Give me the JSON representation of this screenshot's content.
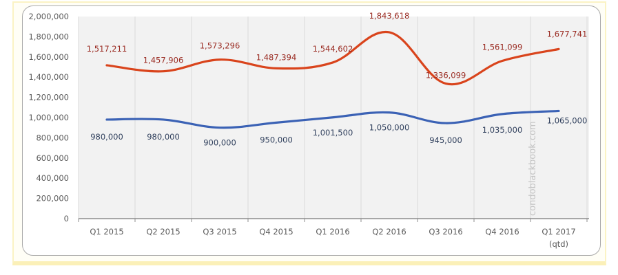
{
  "chart_data": {
    "type": "line",
    "title": "",
    "xlabel": "",
    "ylabel": "",
    "ylim": [
      0,
      2000000
    ],
    "yticks": [
      0,
      200000,
      400000,
      600000,
      800000,
      1000000,
      1200000,
      1400000,
      1600000,
      1800000,
      2000000
    ],
    "ytick_labels": [
      "0",
      "200,000",
      "400,000",
      "600,000",
      "800,000",
      "1,000,000",
      "1,200,000",
      "1,400,000",
      "1,600,000",
      "1,800,000",
      "2,000,000"
    ],
    "categories": [
      "Q1 2015",
      "Q2 2015",
      "Q3 2015",
      "Q4 2015",
      "Q1 2016",
      "Q2 2016",
      "Q3 2016",
      "Q4 2016",
      "Q1 2017"
    ],
    "category_sublabels": [
      "",
      "",
      "",
      "",
      "",
      "",
      "",
      "",
      "(qtd)"
    ],
    "grid": "vertical category separators",
    "smoothed": true,
    "legend": "none",
    "series": [
      {
        "name": "Series 1 (upper)",
        "color": "#d9441c",
        "label_color": "#9a2b22",
        "values": [
          1517211,
          1457906,
          1573296,
          1487394,
          1544602,
          1843618,
          1336099,
          1561099,
          1677741
        ],
        "data_labels": [
          "1,517,211",
          "1,457,906",
          "1,573,296",
          "1,487,394",
          "1,544,602",
          "1,843,618",
          "1,336,099",
          "1,561,099",
          "1,677,741"
        ]
      },
      {
        "name": "Series 2 (lower)",
        "color": "#3b62b5",
        "label_color": "#2f3f5c",
        "values": [
          980000,
          980000,
          900000,
          950000,
          1001500,
          1050000,
          945000,
          1035000,
          1065000
        ],
        "data_labels": [
          "980,000",
          "980,000",
          "900,000",
          "950,000",
          "1,001,500",
          "1,050,000",
          "945,000",
          "1,035,000",
          "1,065,000"
        ]
      }
    ],
    "watermark": "condoblackbook.com"
  }
}
